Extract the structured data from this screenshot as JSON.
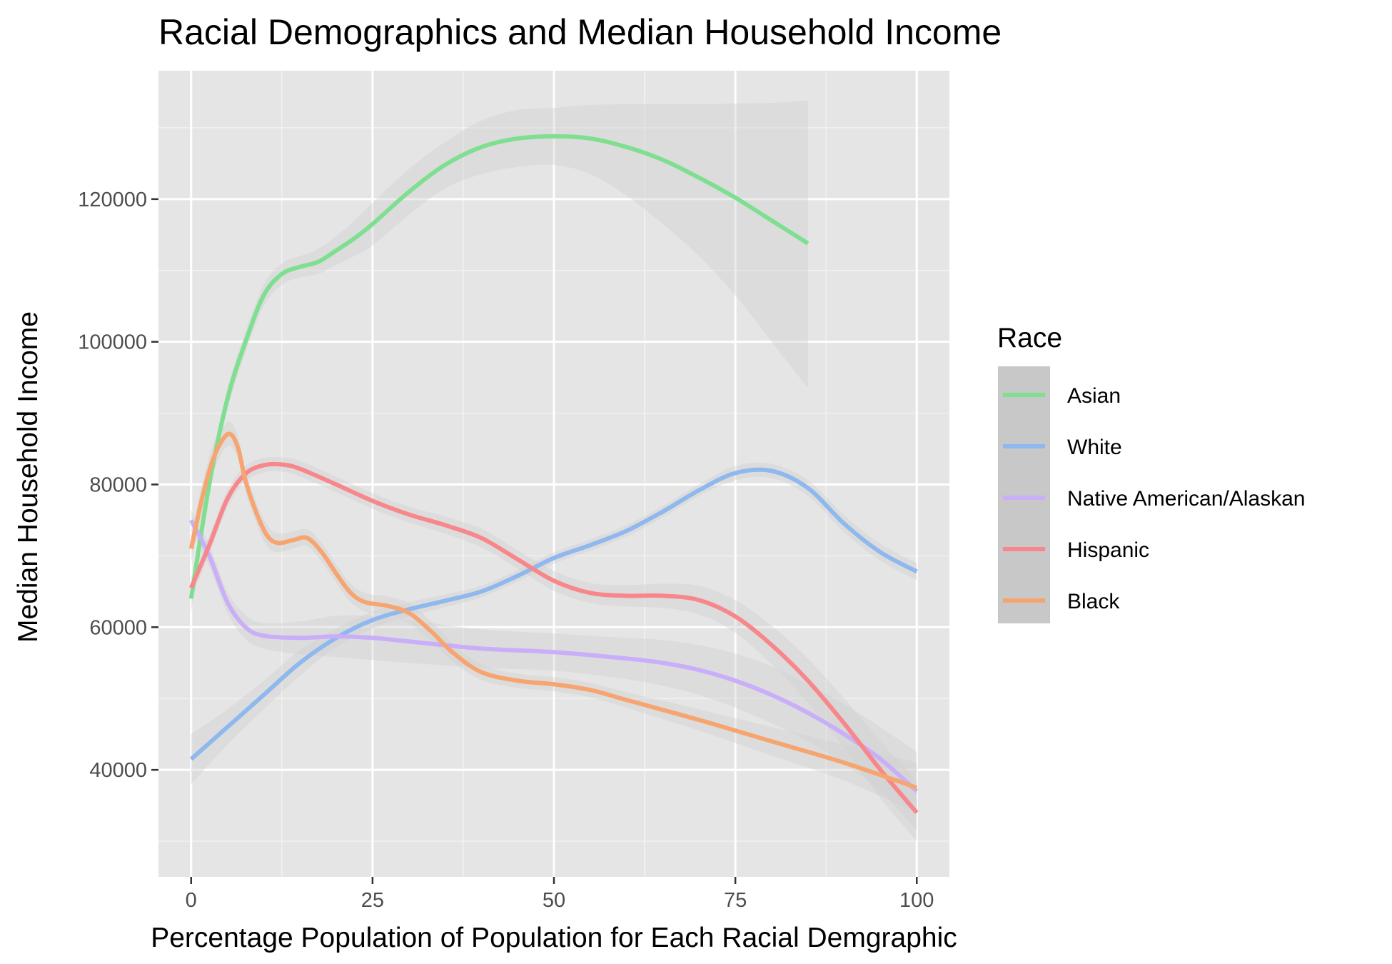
{
  "chart_data": {
    "type": "line",
    "title": "Racial Demographics and Median Household Income",
    "xlabel": "Percentage Population of Population for Each Racial Demgraphic",
    "ylabel": "Median Household Income",
    "xlim": [
      -4.5,
      104.5
    ],
    "ylim": [
      25000,
      138000
    ],
    "x_ticks": [
      0,
      25,
      50,
      75,
      100
    ],
    "x_tick_labels": [
      "0",
      "25",
      "50",
      "75",
      "100"
    ],
    "y_ticks": [
      40000,
      60000,
      80000,
      100000,
      120000
    ],
    "y_tick_labels": [
      "40000",
      "60000",
      "80000",
      "100000",
      "120000"
    ],
    "grid": true,
    "panel_background": "#e5e5e5",
    "ribbon_color": "#d0d0d0",
    "legend": {
      "title": "Race",
      "placement": "right",
      "entries": [
        "Asian",
        "White",
        "Native American/Alaskan",
        "Hispanic",
        "Black"
      ]
    },
    "series": [
      {
        "name": "Asian",
        "color": "#7fdf90",
        "x": [
          0,
          2.5,
          5,
          7.5,
          10,
          12.5,
          15,
          17.5,
          20,
          22.5,
          25,
          30,
          35,
          40,
          45,
          50,
          55,
          60,
          65,
          70,
          75,
          80,
          85
        ],
        "y": [
          64000,
          80000,
          92000,
          100000,
          106500,
          109500,
          110500,
          111200,
          112800,
          114500,
          116500,
          121000,
          124800,
          127300,
          128500,
          128800,
          128500,
          127300,
          125500,
          123000,
          120200,
          117000,
          113800
        ],
        "lower": [
          62000,
          78500,
          90500,
          98500,
          105000,
          108000,
          109000,
          109500,
          110800,
          112000,
          113500,
          117800,
          121500,
          123500,
          124500,
          124800,
          123500,
          120500,
          116500,
          112000,
          106500,
          100000,
          93500
        ],
        "upper": [
          66000,
          81500,
          93500,
          101500,
          108000,
          111000,
          112000,
          113000,
          114800,
          117000,
          119500,
          124200,
          128000,
          131000,
          132500,
          132800,
          133200,
          133300,
          133300,
          133300,
          133400,
          133500,
          133800
        ]
      },
      {
        "name": "White",
        "color": "#8fb8ef",
        "x": [
          0,
          5,
          10,
          15,
          20,
          25,
          30,
          35,
          40,
          45,
          50,
          55,
          60,
          65,
          70,
          75,
          80,
          85,
          90,
          95,
          100
        ],
        "y": [
          41500,
          46000,
          50500,
          55000,
          58500,
          61000,
          62500,
          63700,
          65000,
          67200,
          69700,
          71500,
          73500,
          76200,
          79200,
          81600,
          81900,
          79500,
          74500,
          70500,
          67800
        ],
        "lower": [
          38000,
          43500,
          48500,
          53200,
          57200,
          59800,
          61500,
          62800,
          64200,
          66400,
          68900,
          70700,
          72700,
          75400,
          78400,
          80600,
          80900,
          78400,
          73300,
          69300,
          66600
        ],
        "upper": [
          45000,
          48500,
          52500,
          56800,
          59800,
          62200,
          63500,
          64600,
          65800,
          68000,
          70500,
          72300,
          74300,
          77000,
          80000,
          82600,
          82900,
          80600,
          75700,
          71700,
          69000
        ]
      },
      {
        "name": "Native American/Alaskan",
        "color": "#c9aef9",
        "x": [
          0,
          2.5,
          5,
          7.5,
          10,
          15,
          20,
          25,
          30,
          40,
          50,
          60,
          65,
          70,
          75,
          80,
          85,
          90,
          95,
          100
        ],
        "y": [
          75000,
          70000,
          63500,
          60000,
          58800,
          58500,
          58700,
          58500,
          58000,
          57000,
          56500,
          55600,
          55000,
          54000,
          52500,
          50500,
          48000,
          45000,
          41500,
          37000
        ],
        "lower": [
          73500,
          68500,
          62000,
          58300,
          57000,
          56200,
          55800,
          55400,
          55000,
          54300,
          53900,
          52700,
          51800,
          50500,
          48700,
          46500,
          44000,
          40800,
          37000,
          31500
        ],
        "upper": [
          76500,
          71500,
          65000,
          61700,
          60600,
          60800,
          61600,
          61600,
          61000,
          59700,
          59100,
          58500,
          58200,
          57500,
          56300,
          54500,
          52000,
          49200,
          46000,
          42500
        ]
      },
      {
        "name": "Hispanic",
        "color": "#f7878a",
        "x": [
          0,
          2.5,
          5,
          7.5,
          10,
          12.5,
          15,
          20,
          25,
          30,
          35,
          40,
          45,
          50,
          55,
          60,
          65,
          70,
          75,
          80,
          85,
          90,
          95,
          100
        ],
        "y": [
          65500,
          71500,
          78000,
          81500,
          82700,
          82800,
          82200,
          80000,
          77700,
          75800,
          74300,
          72500,
          69500,
          66500,
          64800,
          64400,
          64400,
          63800,
          61500,
          57500,
          52500,
          46500,
          40000,
          34000
        ],
        "lower": [
          64000,
          70200,
          76800,
          80400,
          81700,
          81800,
          81100,
          78900,
          76600,
          74700,
          73100,
          71200,
          68200,
          65100,
          63400,
          62900,
          62700,
          61800,
          59200,
          54800,
          49400,
          43000,
          36000,
          30000
        ],
        "upper": [
          67000,
          72800,
          79200,
          82600,
          83700,
          83800,
          83300,
          81100,
          78800,
          76900,
          75500,
          73800,
          70800,
          67900,
          66200,
          65900,
          66100,
          65800,
          63800,
          60200,
          55600,
          50000,
          44000,
          38500
        ]
      },
      {
        "name": "Black",
        "color": "#f7a570",
        "x": [
          0,
          1.5,
          3,
          4.5,
          5.5,
          6.5,
          7.5,
          9,
          10.5,
          12,
          14,
          16,
          18,
          20,
          22,
          24,
          27,
          30,
          33,
          36,
          40,
          45,
          50,
          55,
          60,
          70,
          80,
          90,
          100
        ],
        "y": [
          71000,
          78000,
          83500,
          86500,
          87000,
          85000,
          80500,
          76000,
          72800,
          71800,
          72200,
          72500,
          70500,
          67500,
          64800,
          63500,
          63000,
          62000,
          59500,
          56500,
          53700,
          52500,
          52000,
          51200,
          49800,
          47000,
          44000,
          41000,
          37500
        ],
        "lower": [
          69000,
          76000,
          81500,
          84800,
          85300,
          83400,
          79000,
          74500,
          71300,
          70500,
          71000,
          71300,
          69200,
          66200,
          63500,
          62200,
          61700,
          60600,
          58100,
          55200,
          52600,
          51500,
          51000,
          50200,
          48700,
          45500,
          42000,
          38500,
          34000
        ],
        "upper": [
          73000,
          80000,
          85500,
          88200,
          88700,
          86600,
          82000,
          77500,
          74300,
          73100,
          73400,
          73700,
          71800,
          68800,
          66100,
          64800,
          64300,
          63400,
          60900,
          57800,
          54800,
          53500,
          53000,
          52200,
          50900,
          48500,
          46000,
          43500,
          41000
        ]
      }
    ]
  }
}
